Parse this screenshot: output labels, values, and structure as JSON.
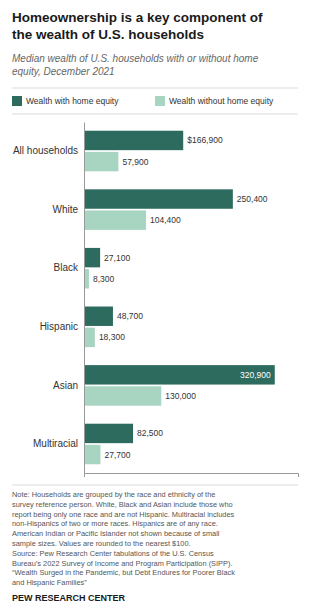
{
  "chart_data": {
    "type": "bar",
    "orientation": "horizontal",
    "title": "Homeownership is a key component of\nthe wealth of U.S. households",
    "subtitle": "Median wealth of U.S. households with or without home\nequity, December 2021",
    "categories": [
      "All households",
      "White",
      "Black",
      "Hispanic",
      "Asian",
      "Multiracial"
    ],
    "series": [
      {
        "name": "Wealth with home equity",
        "color": "#2d6b5e",
        "values": [
          166900,
          250400,
          27100,
          48700,
          320900,
          82500
        ],
        "value_labels": [
          "$166,900",
          "250,400",
          "27,100",
          "48,700",
          "320,900",
          "82,500"
        ]
      },
      {
        "name": "Wealth without home equity",
        "color": "#a8d5c2",
        "values": [
          57900,
          104400,
          8300,
          18300,
          130000,
          27700
        ],
        "value_labels": [
          "57,900",
          "104,400",
          "8,300",
          "18,300",
          "130,000",
          "27,700"
        ]
      }
    ],
    "xlim": [
      0,
      360000
    ],
    "data_labels": true,
    "tick_labels": "y",
    "grid": false,
    "legend": "top",
    "note": "Note: Households are grouped by the race and ethnicity of the\nsurvey reference person. White, Black and Asian include those who\nreport being only one race and are not Hispanic. Multiracial includes\nnon-Hispanics of two or more races. Hispanics are of any race.\nAmerican Indian or Pacific Islander not shown because of small\nsample sizes. Values are rounded to the nearest $100.\nSource: Pew Research Center tabulations of the U.S. Census\nBureau’s 2022 Survey of Income and Program Participation (SIPP).\n“Wealth Surged in the Pandemic, but Debt Endures for Poorer Black\nand Hispanic Families”",
    "source": "PEW RESEARCH CENTER"
  }
}
